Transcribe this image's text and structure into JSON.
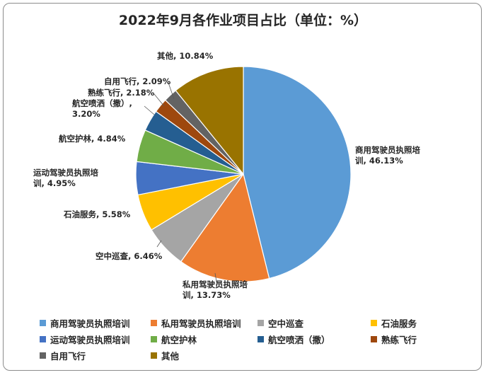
{
  "chart_data": {
    "type": "pie",
    "title": "2022年9月各作业项目占比（单位：%）",
    "unit": "%",
    "legend_position": "bottom",
    "slices": [
      {
        "name": "商用驾驶员执照培训",
        "value": 46.13,
        "value_label": "46.13%",
        "label_lines": [
          "商用驾驶员执照培",
          "训, 46.13%"
        ],
        "color": "#5b9bd5"
      },
      {
        "name": "私用驾驶员执照培训",
        "value": 13.73,
        "value_label": "13.73%",
        "label_lines": [
          "私用驾驶员执照培",
          "训, 13.73%"
        ],
        "color": "#ed7d31"
      },
      {
        "name": "空中巡查",
        "value": 6.46,
        "value_label": "6.46%",
        "label_lines": [
          "空中巡查, 6.46%"
        ],
        "color": "#a5a5a5"
      },
      {
        "name": "石油服务",
        "value": 5.58,
        "value_label": "5.58%",
        "label_lines": [
          "石油服务, 5.58%"
        ],
        "color": "#ffc000"
      },
      {
        "name": "运动驾驶员执照培训",
        "value": 4.95,
        "value_label": "4.95%",
        "label_lines": [
          "运动驾驶员执照培",
          "训, 4.95%"
        ],
        "color": "#4472c4"
      },
      {
        "name": "航空护林",
        "value": 4.84,
        "value_label": "4.84%",
        "label_lines": [
          "航空护林, 4.84%"
        ],
        "color": "#70ad47"
      },
      {
        "name": "航空喷洒（撒）",
        "value": 3.2,
        "value_label": "3.20%",
        "label_lines": [
          "航空喷洒（撒）,",
          "3.20%"
        ],
        "color": "#255e91"
      },
      {
        "name": "熟练飞行",
        "value": 2.18,
        "value_label": "2.18%",
        "label_lines": [
          "熟练飞行, 2.18%"
        ],
        "color": "#9e480e"
      },
      {
        "name": "自用飞行",
        "value": 2.09,
        "value_label": "2.09%",
        "label_lines": [
          "自用飞行, 2.09%"
        ],
        "color": "#636363"
      },
      {
        "name": "其他",
        "value": 10.84,
        "value_label": "10.84%",
        "label_lines": [
          "其他, 10.84%"
        ],
        "color": "#997300"
      }
    ]
  }
}
